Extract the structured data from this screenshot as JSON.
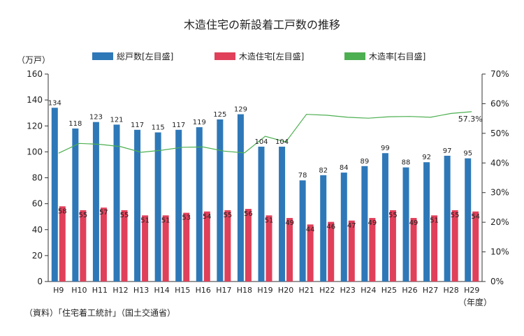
{
  "chart_data": {
    "type": "bar",
    "title": "木造住宅の新設着工戸数の推移",
    "categories": [
      "H9",
      "H10",
      "H11",
      "H12",
      "H13",
      "H14",
      "H15",
      "H16",
      "H17",
      "H18",
      "H19",
      "H20",
      "H21",
      "H22",
      "H23",
      "H24",
      "H25",
      "H26",
      "H27",
      "H28",
      "H29"
    ],
    "series": [
      {
        "name": "総戸数[左目盛]",
        "type": "bar",
        "axis": "left",
        "color": "#2e78b8",
        "values": [
          134,
          118,
          123,
          121,
          117,
          115,
          117,
          119,
          125,
          129,
          104,
          104,
          78,
          82,
          84,
          89,
          99,
          88,
          92,
          97,
          95
        ]
      },
      {
        "name": "木造住宅[左目盛]",
        "type": "bar",
        "axis": "left",
        "color": "#e0405a",
        "values": [
          58,
          55,
          57,
          55,
          51,
          51,
          53,
          54,
          55,
          56,
          51,
          49,
          44,
          46,
          47,
          49,
          55,
          49,
          51,
          55,
          54
        ]
      },
      {
        "name": "木造率[右目盛]",
        "type": "line",
        "axis": "right",
        "color": "#4caf50",
        "values": [
          43.3,
          46.6,
          46.3,
          45.5,
          43.6,
          44.3,
          45.3,
          45.4,
          44.0,
          43.4,
          49.0,
          47.1,
          56.4,
          56.1,
          55.4,
          55.1,
          55.6,
          55.7,
          55.4,
          56.7,
          57.3
        ]
      }
    ],
    "line_end_label": "57.3%",
    "ylabel_left": "（万戸）",
    "ylim_left": [
      0,
      160
    ],
    "yticks_left": [
      "0",
      "20",
      "40",
      "60",
      "80",
      "100",
      "120",
      "140",
      "160"
    ],
    "ylim_right": [
      0,
      70
    ],
    "yticks_right": [
      "0%",
      "10%",
      "20%",
      "30%",
      "40%",
      "50%",
      "60%",
      "70%"
    ],
    "xlabel": "（年度）",
    "legend_position": "top",
    "grid": false
  },
  "source_note": "（資料）「住宅着工統計」（国土交通省）"
}
